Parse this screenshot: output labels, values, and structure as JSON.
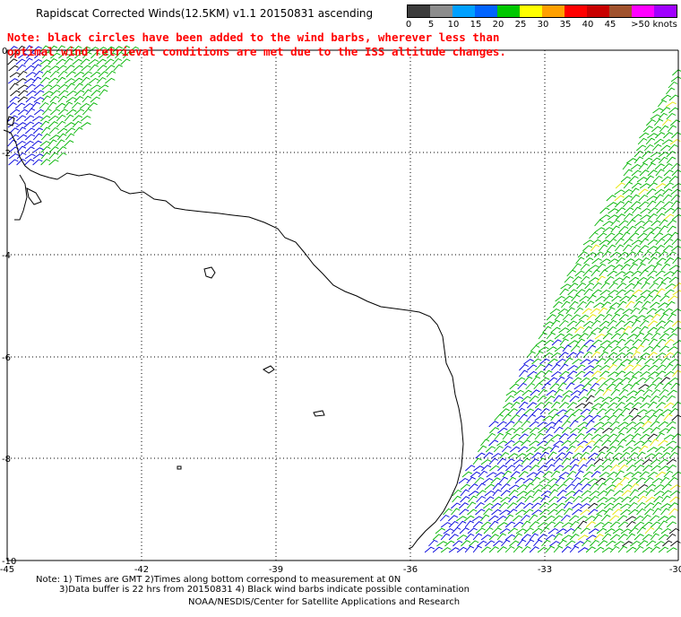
{
  "title": "Rapidscat Corrected Winds(12.5KM) v1.1 20150831 ascending",
  "note": {
    "line1": "Note: black circles have been added to the wind barbs, wherever less than",
    "line2": "optimal wind retrieval conditions are met due to the ISS altitude changes."
  },
  "legend": {
    "labels": [
      "0",
      "5",
      "10",
      "15",
      "20",
      "25",
      "30",
      "35",
      "40",
      "45",
      ">50 knots"
    ],
    "colors": [
      "#3c3c3c",
      "#8c8c8c",
      "#00a0ff",
      "#0064ff",
      "#00c800",
      "#ffff00",
      "#ffa000",
      "#ff0000",
      "#c80000",
      "#a0522d",
      "#ff00ff",
      "#a000ff"
    ]
  },
  "axes": {
    "lon_labels": [
      "-45",
      "-42",
      "-39",
      "-36",
      "-33",
      "-30"
    ],
    "lat_labels": [
      "0",
      "-2",
      "-4",
      "-6",
      "-8",
      "-10"
    ]
  },
  "footer": {
    "line1": "Note: 1) Times are GMT 2)Times along bottom correspond to measurement at 0N",
    "line2": "3)Data buffer is 22 hrs from 20150831 4) Black wind barbs indicate possible contamination",
    "line3": "NOAA/NESDIS/Center for Satellite Applications and Research"
  },
  "colors": {
    "note_text": "#ff0000",
    "grid": "#000000",
    "coast": "#000000",
    "barb_green": "#00b400",
    "barb_blue": "#0000dc",
    "barb_yellow": "#e6e600",
    "barb_black": "#000000"
  }
}
